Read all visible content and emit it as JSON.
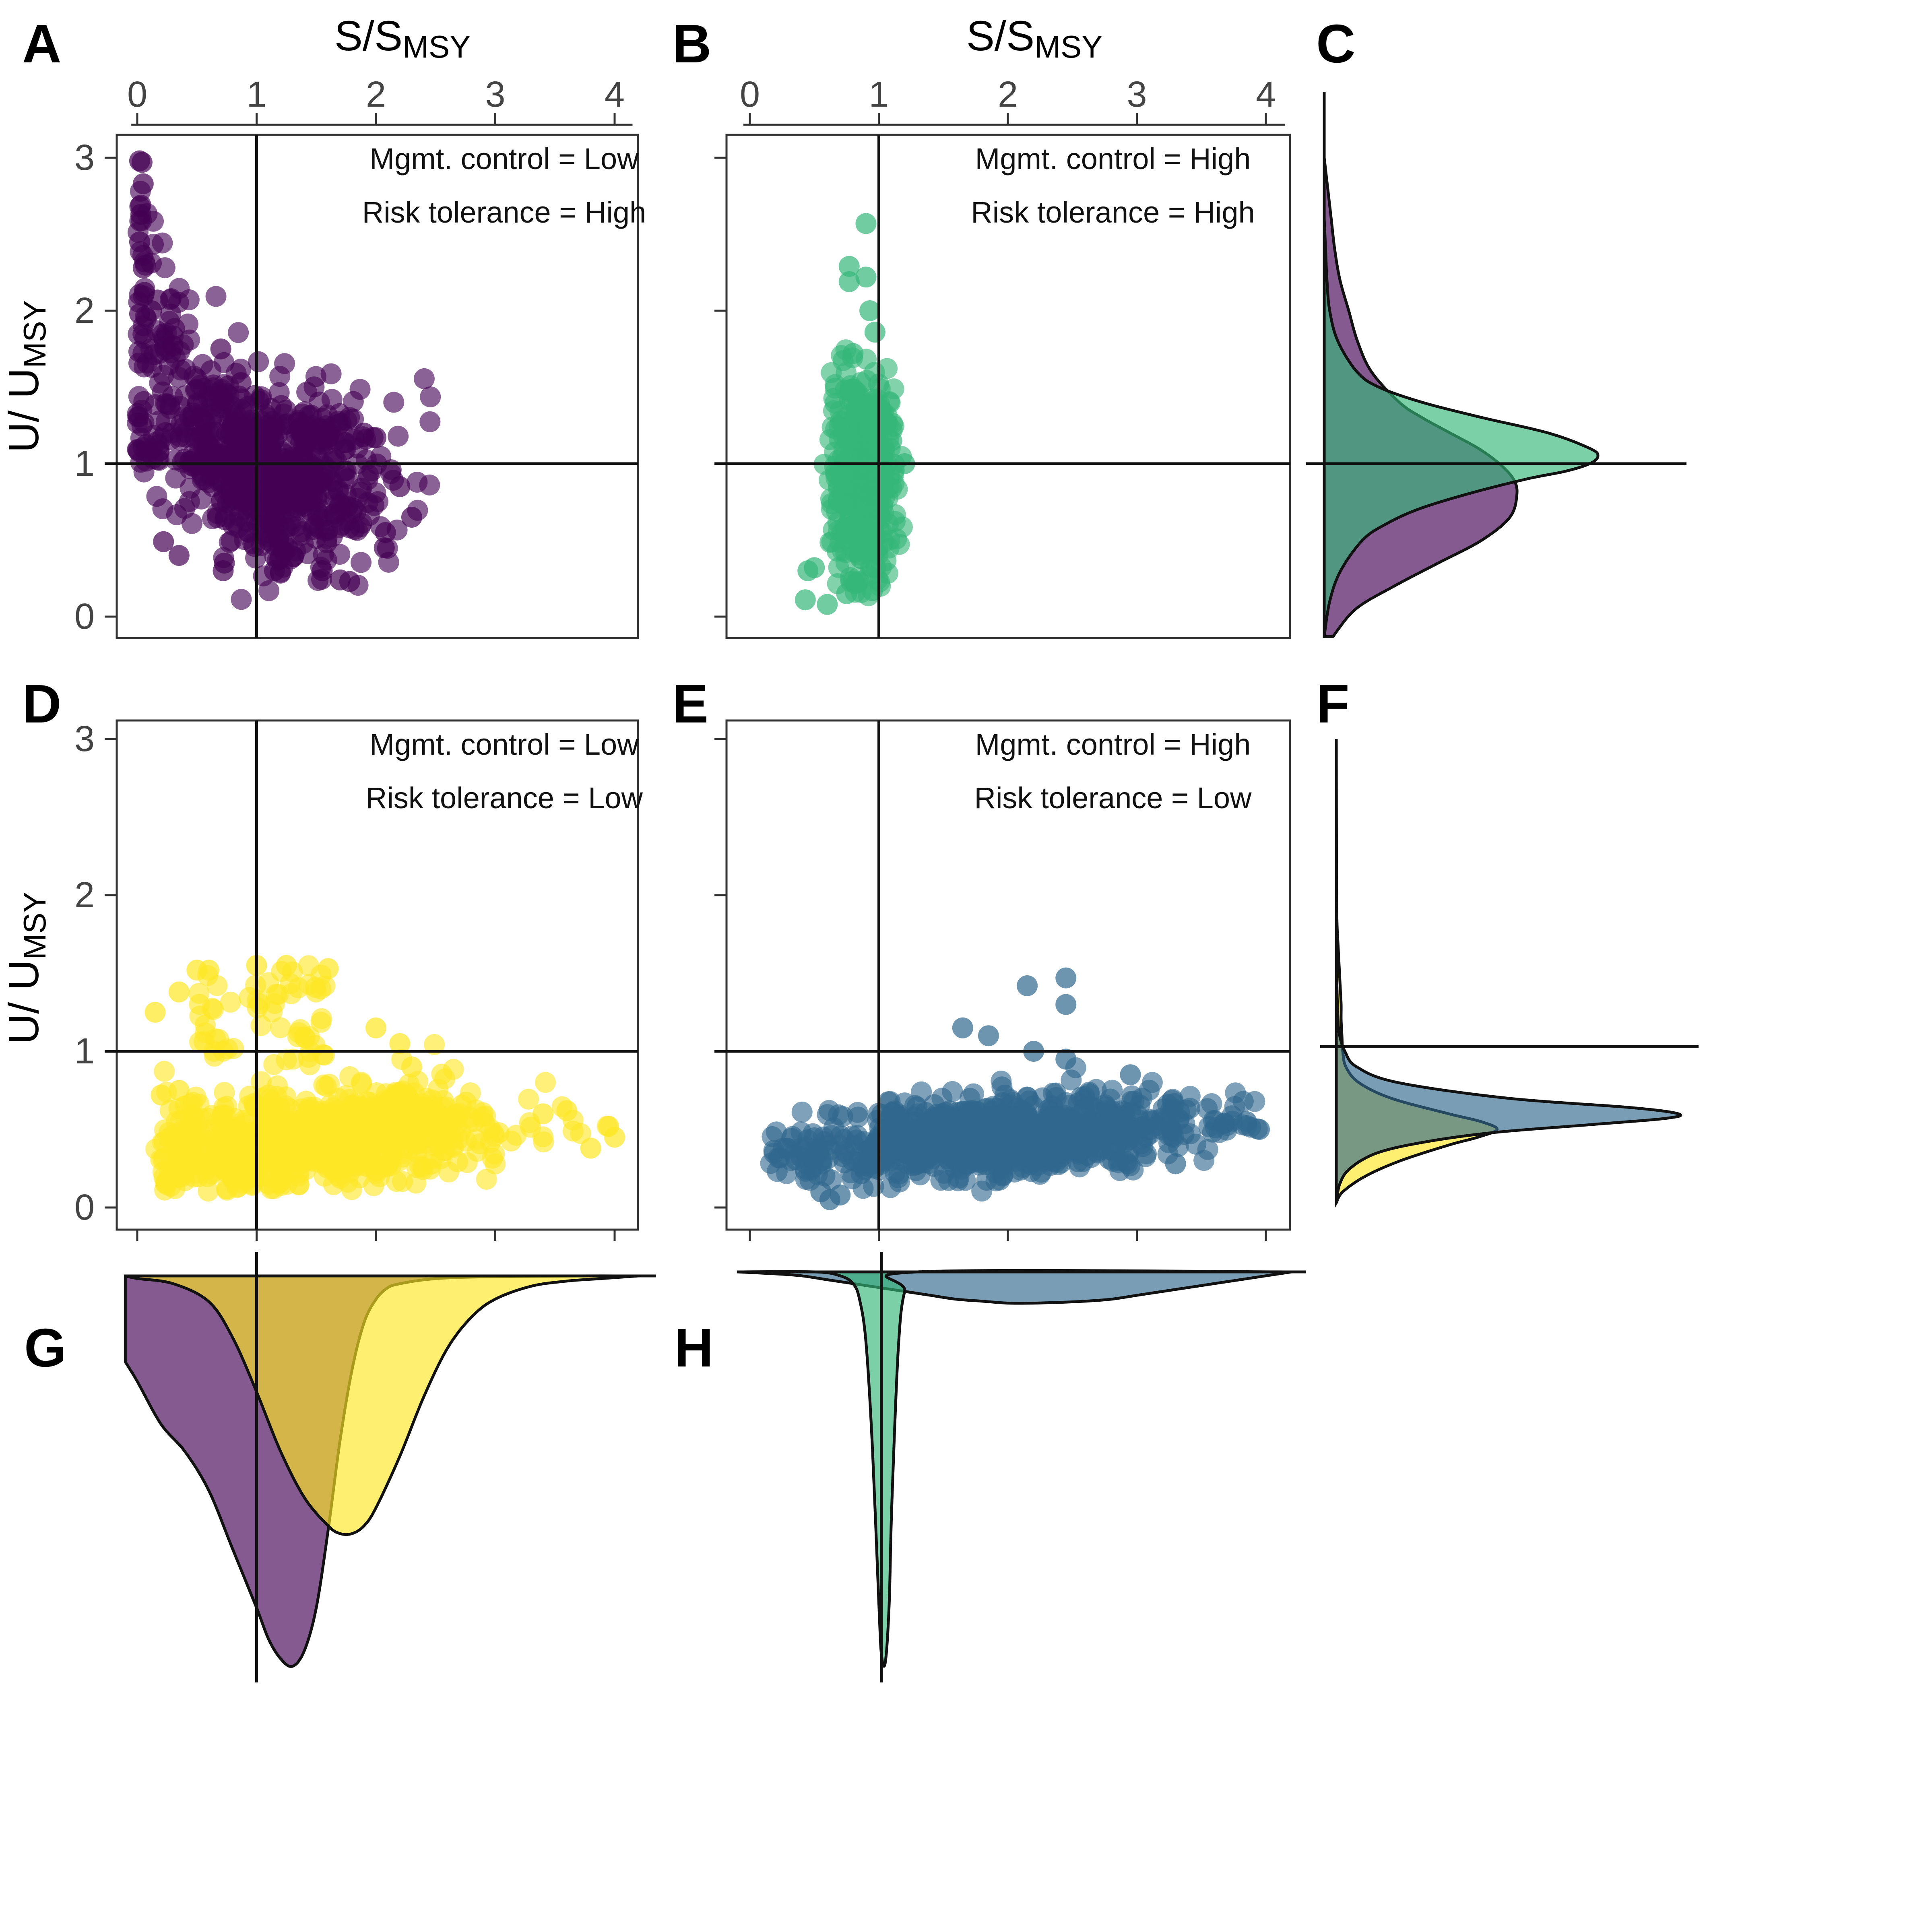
{
  "figure": {
    "x_axis_title": "S/S",
    "x_axis_title_sub": "MSY",
    "y_axis_title": "U/ U",
    "y_axis_title_sub": "MSY",
    "x_ticks": [
      "0",
      "1",
      "2",
      "3",
      "4"
    ],
    "y_ticks": [
      "0",
      "1",
      "2",
      "3"
    ],
    "reference_lines": {
      "x": 1,
      "y": 1
    }
  },
  "colors": {
    "low_high": "#440154",
    "high_high": "#35b779",
    "low_low": "#fde725",
    "high_low": "#31688e"
  },
  "chart_data": [
    {
      "panel": "A",
      "type": "scatter",
      "color_key": "low_high",
      "annotations": [
        "Mgmt. control = Low",
        "Risk tolerance = High"
      ],
      "xlim": [
        -0.15,
        4.2
      ],
      "ylim": [
        -0.13,
        3.15
      ],
      "cluster": {
        "x_center": 1.1,
        "x_spread": 0.45,
        "y_center": 0.9,
        "y_spread": 0.28,
        "n": 700
      },
      "tail": {
        "x_range": [
          0.0,
          0.7
        ],
        "y_range": [
          1.0,
          3.0
        ],
        "n": 80
      },
      "points": [
        [
          0.02,
          2.98
        ],
        [
          0.04,
          2.97
        ],
        [
          0.05,
          2.83
        ],
        [
          0.03,
          2.69
        ],
        [
          0.03,
          2.63
        ],
        [
          0.02,
          2.45
        ],
        [
          0.05,
          2.28
        ],
        [
          0.06,
          2.12
        ],
        [
          0.17,
          2.07
        ],
        [
          0.12,
          2.0
        ],
        [
          0.02,
          1.98
        ],
        [
          0.3,
          1.77
        ],
        [
          0.7,
          1.75
        ],
        [
          0.87,
          1.53
        ],
        [
          1.35,
          1.27
        ],
        [
          1.9,
          1.2
        ],
        [
          2.0,
          1.17
        ],
        [
          2.2,
          0.85
        ],
        [
          2.3,
          0.65
        ],
        [
          2.08,
          0.55
        ],
        [
          2.07,
          0.45
        ],
        [
          0.22,
          0.49
        ],
        [
          0.35,
          0.4
        ],
        [
          0.73,
          0.35
        ],
        [
          0.72,
          0.3
        ],
        [
          1.15,
          0.3
        ],
        [
          1.55,
          0.3
        ],
        [
          1.7,
          0.24
        ],
        [
          1.78,
          0.23
        ]
      ]
    },
    {
      "panel": "B",
      "type": "scatter",
      "color_key": "high_high",
      "annotations": [
        "Mgmt. control = High",
        "Risk tolerance = High"
      ],
      "xlim": [
        -0.15,
        4.2
      ],
      "ylim": [
        -0.13,
        3.15
      ],
      "cluster": {
        "x_center": 0.88,
        "x_spread": 0.12,
        "y_center": 0.95,
        "y_spread": 0.35,
        "n": 500
      },
      "points": [
        [
          0.9,
          2.57
        ],
        [
          0.77,
          2.29
        ],
        [
          0.9,
          2.22
        ],
        [
          0.77,
          2.19
        ],
        [
          0.93,
          2.0
        ],
        [
          0.97,
          1.86
        ],
        [
          0.8,
          1.72
        ],
        [
          0.45,
          0.3
        ],
        [
          0.5,
          0.32
        ],
        [
          0.43,
          0.11
        ],
        [
          0.6,
          0.08
        ],
        [
          0.75,
          0.15
        ],
        [
          0.95,
          0.17
        ],
        [
          1.2,
          1.0
        ],
        [
          1.1,
          1.15
        ]
      ]
    },
    {
      "panel": "C",
      "type": "area",
      "orientation": "horizontal density of U/U_MSY",
      "ylim": [
        -0.13,
        3.15
      ],
      "series": [
        {
          "color_key": "low_high",
          "y": [
            -0.13,
            0.05,
            0.2,
            0.35,
            0.5,
            0.65,
            0.8,
            0.9,
            1.0,
            1.1,
            1.2,
            1.3,
            1.4,
            1.6,
            1.8,
            2.0,
            2.2,
            2.4,
            2.6,
            2.8,
            3.0
          ],
          "density": [
            0.05,
            0.18,
            0.4,
            0.65,
            0.9,
            1.06,
            1.1,
            1.08,
            1.0,
            0.88,
            0.72,
            0.56,
            0.43,
            0.27,
            0.19,
            0.14,
            0.09,
            0.06,
            0.04,
            0.02,
            0.0
          ]
        },
        {
          "color_key": "high_high",
          "y": [
            -0.13,
            0.1,
            0.3,
            0.5,
            0.6,
            0.7,
            0.8,
            0.9,
            0.95,
            1.0,
            1.05,
            1.1,
            1.2,
            1.3,
            1.4,
            1.5,
            1.6,
            1.8,
            2.0,
            2.2,
            2.4,
            2.6
          ],
          "density": [
            0.0,
            0.02,
            0.06,
            0.14,
            0.22,
            0.34,
            0.52,
            0.74,
            0.88,
            0.97,
            1.0,
            0.97,
            0.82,
            0.58,
            0.36,
            0.2,
            0.12,
            0.05,
            0.02,
            0.01,
            0.005,
            0.0
          ]
        }
      ]
    },
    {
      "panel": "D",
      "type": "scatter",
      "color_key": "low_low",
      "annotations": [
        "Mgmt. control = Low",
        "Risk tolerance = Low"
      ],
      "xlim": [
        -0.15,
        4.2
      ],
      "ylim": [
        -0.13,
        3.15
      ],
      "cluster": {
        "x_center": 1.5,
        "x_spread": 0.75,
        "y_center": 0.45,
        "y_spread": 0.14,
        "n": 900
      },
      "upper": {
        "x_range": [
          0.5,
          1.6
        ],
        "y_range": [
          0.9,
          1.55
        ],
        "n": 60
      },
      "points": [
        [
          0.5,
          1.52
        ],
        [
          0.6,
          1.52
        ],
        [
          1.0,
          1.55
        ],
        [
          1.25,
          1.55
        ],
        [
          1.6,
          1.53
        ],
        [
          0.35,
          1.38
        ],
        [
          0.15,
          1.25
        ],
        [
          0.2,
          0.72
        ],
        [
          0.35,
          0.75
        ],
        [
          0.4,
          0.65
        ],
        [
          2.0,
          1.15
        ],
        [
          2.2,
          1.05
        ],
        [
          2.3,
          0.9
        ],
        [
          3.4,
          0.6
        ],
        [
          3.6,
          0.62
        ],
        [
          3.95,
          0.52
        ],
        [
          3.8,
          0.38
        ],
        [
          4.0,
          0.45
        ],
        [
          0.75,
          0.12
        ],
        [
          1.1,
          0.15
        ]
      ]
    },
    {
      "panel": "E",
      "type": "scatter",
      "color_key": "high_low",
      "annotations": [
        "Mgmt. control = High",
        "Risk tolerance = Low"
      ],
      "xlim": [
        -0.15,
        4.2
      ],
      "ylim": [
        -0.13,
        3.15
      ],
      "cluster": {
        "x_center": 1.9,
        "x_spread": 0.75,
        "y_center": 0.45,
        "y_spread": 0.12,
        "n": 900
      },
      "points": [
        [
          2.45,
          1.47
        ],
        [
          2.15,
          1.42
        ],
        [
          2.45,
          1.3
        ],
        [
          1.65,
          1.15
        ],
        [
          1.85,
          1.1
        ],
        [
          2.2,
          1.0
        ],
        [
          2.45,
          0.95
        ],
        [
          2.95,
          0.85
        ],
        [
          3.3,
          0.28
        ],
        [
          0.55,
          0.3
        ],
        [
          0.55,
          0.1
        ],
        [
          0.62,
          0.05
        ],
        [
          0.7,
          0.08
        ],
        [
          3.95,
          0.5
        ],
        [
          3.85,
          0.55
        ]
      ]
    },
    {
      "panel": "F",
      "type": "area",
      "orientation": "horizontal density of U/U_MSY",
      "ylim": [
        -0.13,
        3.15
      ],
      "series": [
        {
          "color_key": "low_low",
          "y": [
            0.03,
            0.1,
            0.2,
            0.3,
            0.4,
            0.45,
            0.5,
            0.55,
            0.6,
            0.7,
            0.8,
            0.9,
            1.0,
            1.1,
            1.2,
            1.3,
            1.4,
            1.5,
            1.6,
            1.7,
            1.8,
            2.0,
            2.4,
            3.0
          ],
          "density": [
            0.0,
            0.04,
            0.18,
            0.4,
            0.7,
            0.88,
            1.0,
            0.9,
            0.7,
            0.34,
            0.14,
            0.06,
            0.04,
            0.035,
            0.03,
            0.03,
            0.025,
            0.02,
            0.015,
            0.01,
            0.005,
            0.002,
            0.001,
            0.0
          ]
        },
        {
          "color_key": "high_low",
          "y": [
            0.03,
            0.15,
            0.25,
            0.35,
            0.42,
            0.48,
            0.53,
            0.57,
            0.6,
            0.64,
            0.7,
            0.8,
            0.9,
            1.0,
            1.1,
            1.2,
            1.4,
            1.6
          ],
          "density": [
            0.0,
            0.01,
            0.04,
            0.12,
            0.26,
            0.46,
            0.74,
            0.96,
            1.0,
            0.86,
            0.5,
            0.18,
            0.06,
            0.025,
            0.01,
            0.005,
            0.002,
            0.0
          ]
        }
      ]
    },
    {
      "panel": "G",
      "type": "area",
      "orientation": "downward density of S/S_MSY",
      "xlim": [
        -0.15,
        4.2
      ],
      "series": [
        {
          "color_key": "low_high",
          "x": [
            -0.1,
            0.0,
            0.2,
            0.4,
            0.6,
            0.8,
            1.0,
            1.1,
            1.2,
            1.3,
            1.4,
            1.5,
            1.6,
            1.7,
            1.8,
            1.9,
            2.0,
            2.1,
            2.2,
            2.4,
            2.6,
            2.8,
            3.0,
            3.3,
            3.7,
            4.2
          ],
          "density": [
            0.22,
            0.27,
            0.38,
            0.45,
            0.55,
            0.7,
            0.85,
            0.93,
            0.98,
            1.0,
            0.96,
            0.85,
            0.65,
            0.42,
            0.24,
            0.12,
            0.06,
            0.03,
            0.02,
            0.01,
            0.005,
            0.003,
            0.002,
            0.001,
            0.0,
            0.0
          ]
        },
        {
          "color_key": "low_low",
          "x": [
            -0.1,
            0.0,
            0.3,
            0.6,
            0.8,
            1.0,
            1.2,
            1.4,
            1.6,
            1.7,
            1.8,
            1.9,
            2.0,
            2.2,
            2.4,
            2.6,
            2.8,
            3.0,
            3.3,
            3.6,
            3.9,
            4.2
          ],
          "density": [
            0.0,
            0.01,
            0.03,
            0.1,
            0.24,
            0.45,
            0.68,
            0.86,
            0.97,
            1.0,
            1.0,
            0.97,
            0.9,
            0.7,
            0.47,
            0.28,
            0.16,
            0.09,
            0.04,
            0.02,
            0.01,
            0.0
          ]
        }
      ]
    },
    {
      "panel": "H",
      "type": "area",
      "orientation": "downward density of S/S_MSY",
      "xlim": [
        -0.15,
        4.2
      ],
      "series": [
        {
          "color_key": "high_low",
          "x": [
            -0.1,
            0.2,
            0.4,
            0.6,
            0.8,
            1.0,
            1.2,
            1.4,
            1.6,
            1.8,
            2.0,
            2.2,
            2.4,
            2.6,
            2.8,
            3.0,
            3.2,
            3.4,
            3.6,
            3.8,
            4.0,
            4.2
          ],
          "density": [
            0.0,
            0.005,
            0.01,
            0.02,
            0.03,
            0.04,
            0.05,
            0.06,
            0.07,
            0.075,
            0.08,
            0.08,
            0.078,
            0.075,
            0.07,
            0.06,
            0.05,
            0.04,
            0.03,
            0.02,
            0.01,
            0.0
          ]
        },
        {
          "color_key": "high_high",
          "x": [
            -0.1,
            0.5,
            0.7,
            0.8,
            0.85,
            0.9,
            0.95,
            1.0,
            1.02,
            1.05,
            1.08,
            1.1,
            1.15,
            1.2,
            1.3,
            4.2
          ],
          "density": [
            0.0,
            0.0,
            0.01,
            0.03,
            0.07,
            0.18,
            0.45,
            0.85,
            0.98,
            1.0,
            0.85,
            0.6,
            0.2,
            0.05,
            0.0,
            0.0
          ]
        }
      ]
    }
  ]
}
